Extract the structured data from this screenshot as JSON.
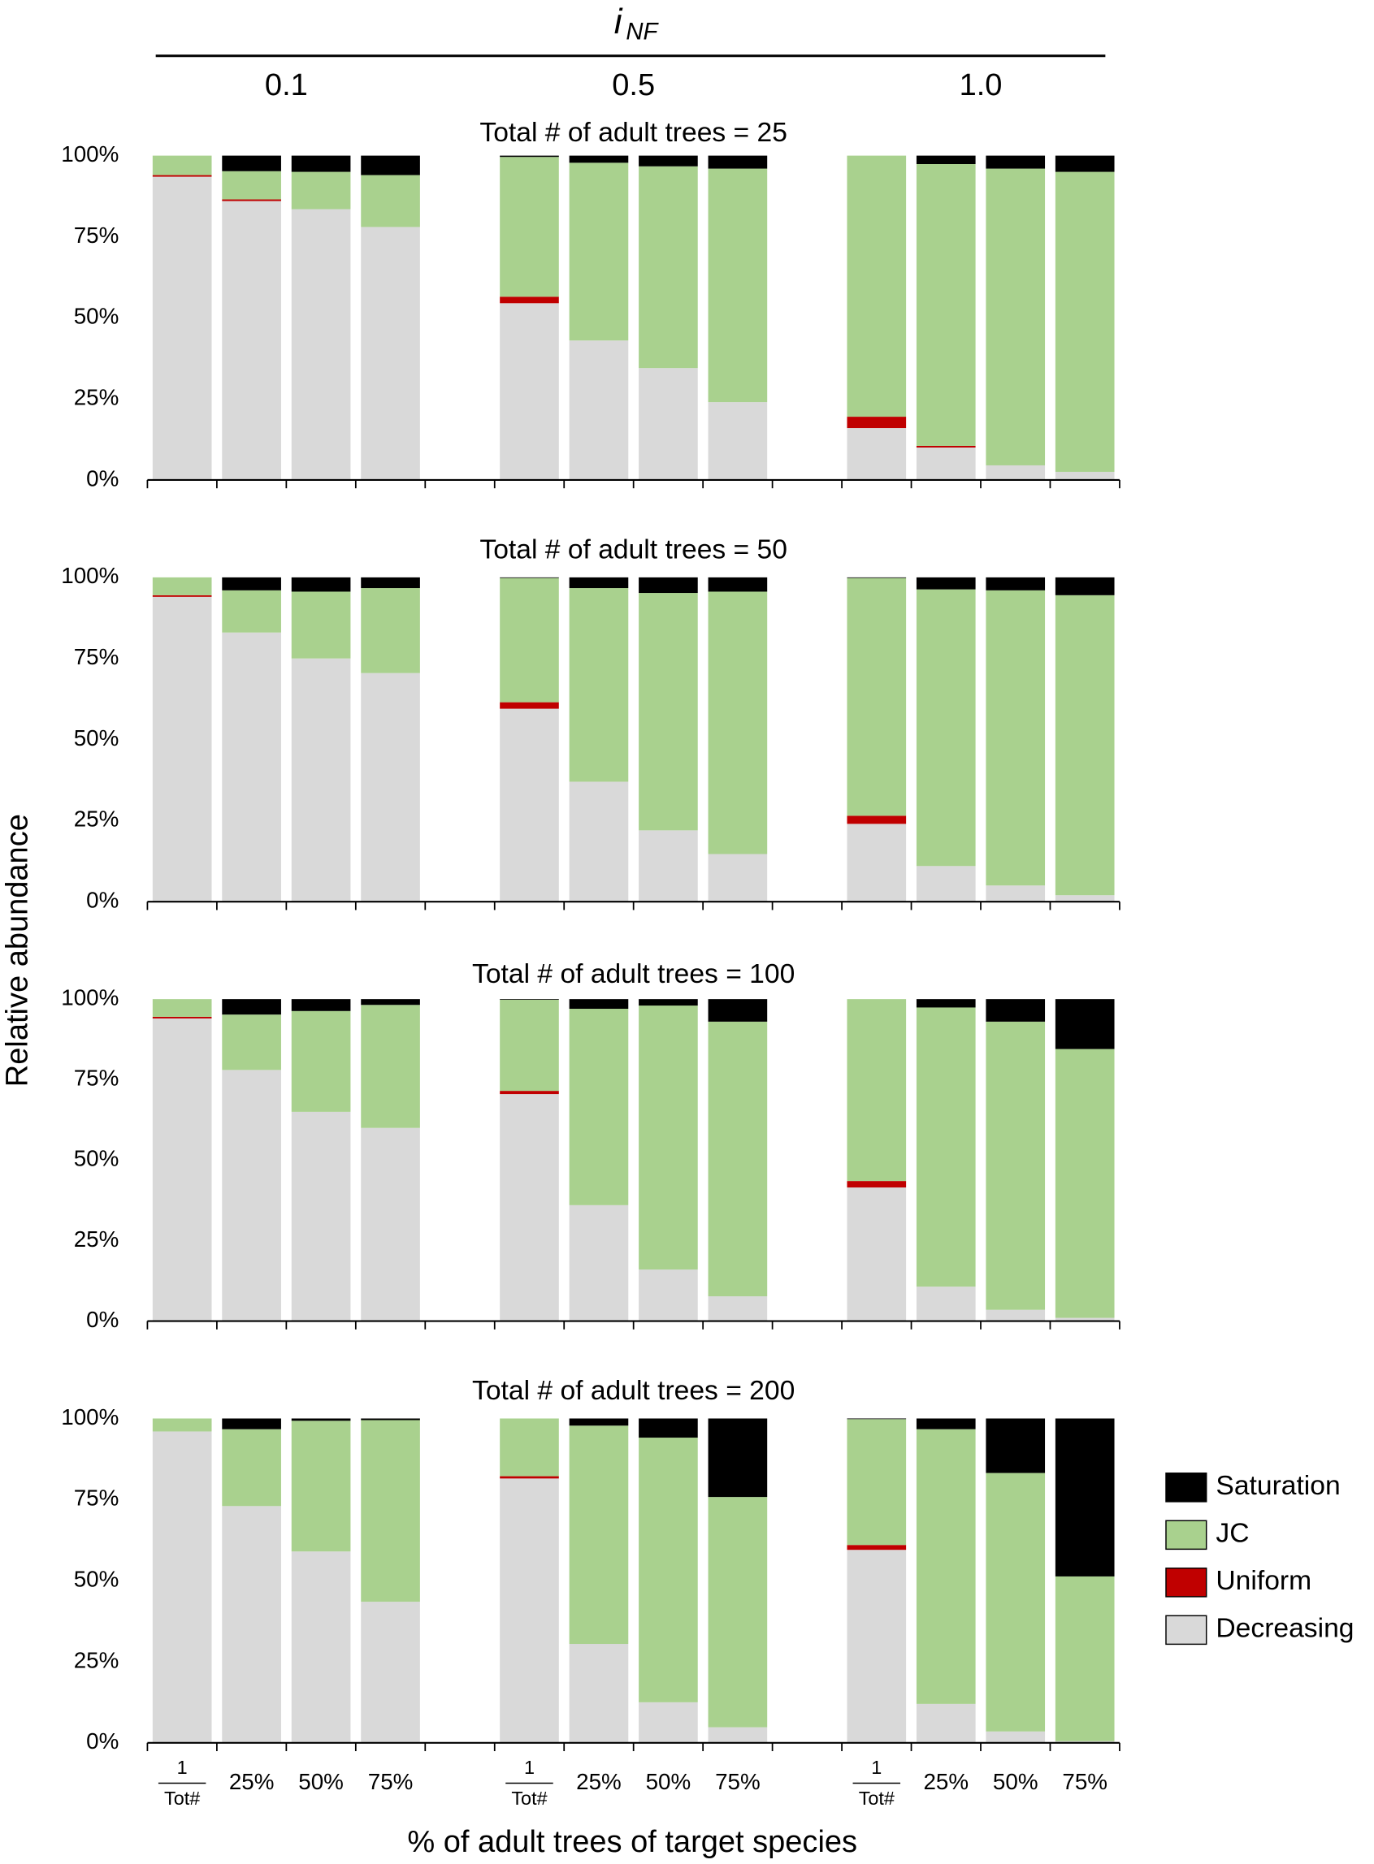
{
  "header": {
    "text": "i",
    "subscript": "NF"
  },
  "groups": [
    "0.1",
    "0.5",
    "1.0"
  ],
  "ylabel": "Relative abundance",
  "xlabel": "% of adult trees of target species",
  "chart_data": [
    {
      "type": "bar",
      "stacked": true,
      "title": "Total # of adult trees = 25",
      "ylim": [
        0,
        100
      ],
      "yticks": [
        {
          "value": 0,
          "label": "0%"
        },
        {
          "value": 25,
          "label": "25%"
        },
        {
          "value": 50,
          "label": "50%"
        },
        {
          "value": 75,
          "label": "75%"
        },
        {
          "value": 100,
          "label": "100%"
        }
      ],
      "series": [
        {
          "color": "#d9d9d9",
          "values": [
            93.5,
            86,
            83.5,
            78,
            null,
            54.5,
            43,
            34.5,
            24,
            null,
            16,
            10,
            4.5,
            2.5
          ]
        },
        {
          "color": "#c00000",
          "values": [
            0.5,
            0.5,
            0,
            0,
            null,
            2,
            0,
            0,
            0,
            null,
            3.5,
            0.5,
            0,
            0
          ]
        },
        {
          "color": "#a9d18e",
          "values": [
            6,
            8.7,
            11.5,
            16,
            null,
            43.1,
            54.8,
            62.2,
            72,
            null,
            80.5,
            86.9,
            91.5,
            92.5
          ]
        },
        {
          "color": "#000000",
          "values": [
            0,
            4.8,
            5,
            6,
            null,
            0.4,
            2.2,
            3.3,
            4,
            null,
            0,
            2.6,
            4,
            5
          ]
        }
      ]
    },
    {
      "type": "bar",
      "stacked": true,
      "title": "Total # of adult trees = 50",
      "ylim": [
        0,
        100
      ],
      "yticks": [
        {
          "value": 0,
          "label": "0%"
        },
        {
          "value": 25,
          "label": "25%"
        },
        {
          "value": 50,
          "label": "50%"
        },
        {
          "value": 75,
          "label": "75%"
        },
        {
          "value": 100,
          "label": "100%"
        }
      ],
      "series": [
        {
          "color": "#d9d9d9",
          "values": [
            94,
            83,
            75,
            70.5,
            null,
            59.5,
            37,
            22,
            14.7,
            null,
            24,
            11,
            5,
            2
          ]
        },
        {
          "color": "#c00000",
          "values": [
            0.5,
            0,
            0,
            0,
            null,
            2,
            0,
            0,
            0,
            null,
            2.5,
            0,
            0,
            0
          ]
        },
        {
          "color": "#a9d18e",
          "values": [
            5.5,
            13,
            20.6,
            26.2,
            null,
            38.3,
            59.7,
            73.2,
            80.9,
            null,
            73.3,
            85.3,
            91,
            92.5
          ]
        },
        {
          "color": "#000000",
          "values": [
            0,
            4,
            4.4,
            3.3,
            null,
            0.2,
            3.3,
            4.8,
            4.4,
            null,
            0.2,
            3.7,
            4,
            5.5
          ]
        }
      ]
    },
    {
      "type": "bar",
      "stacked": true,
      "title": "Total # of adult trees = 100",
      "ylim": [
        0,
        100
      ],
      "yticks": [
        {
          "value": 0,
          "label": "0%"
        },
        {
          "value": 25,
          "label": "25%"
        },
        {
          "value": 50,
          "label": "50%"
        },
        {
          "value": 75,
          "label": "75%"
        },
        {
          "value": 100,
          "label": "100%"
        }
      ],
      "series": [
        {
          "color": "#d9d9d9",
          "values": [
            94,
            78,
            65,
            60,
            null,
            70.5,
            36,
            16,
            7.7,
            null,
            41.5,
            10.7,
            3.5,
            1
          ]
        },
        {
          "color": "#c00000",
          "values": [
            0.5,
            0,
            0,
            0,
            null,
            1,
            0,
            0,
            0,
            null,
            2,
            0,
            0,
            0
          ]
        },
        {
          "color": "#a9d18e",
          "values": [
            5.5,
            17.2,
            31.3,
            38.2,
            null,
            28.3,
            61,
            82,
            85.3,
            null,
            56.5,
            86.7,
            89.5,
            83.5
          ]
        },
        {
          "color": "#000000",
          "values": [
            0,
            4.8,
            3.7,
            1.8,
            null,
            0.2,
            3,
            2,
            7,
            null,
            0,
            2.6,
            7,
            15.5
          ]
        }
      ]
    },
    {
      "type": "bar",
      "stacked": true,
      "title": "Total # of adult trees = 200",
      "categories": [
        {
          "numerator": "1",
          "denominator": "Tot#"
        },
        "25%",
        "50%",
        "75%",
        null,
        {
          "numerator": "1",
          "denominator": "Tot#"
        },
        "25%",
        "50%",
        "75%",
        null,
        {
          "numerator": "1",
          "denominator": "Tot#"
        },
        "25%",
        "50%",
        "75%"
      ],
      "ylim": [
        0,
        100
      ],
      "yticks": [
        {
          "value": 0,
          "label": "0%"
        },
        {
          "value": 25,
          "label": "25%"
        },
        {
          "value": 50,
          "label": "50%"
        },
        {
          "value": 75,
          "label": "75%"
        },
        {
          "value": 100,
          "label": "100%"
        }
      ],
      "legend": "right",
      "series": [
        {
          "name": "Decreasing",
          "color": "#d9d9d9",
          "values": [
            96,
            73,
            59,
            43.5,
            null,
            81.5,
            30.5,
            12.5,
            4.8,
            null,
            59.5,
            12,
            3.5,
            0.5
          ]
        },
        {
          "name": "Uniform",
          "color": "#c00000",
          "values": [
            0,
            0,
            0,
            0,
            null,
            0.7,
            0,
            0,
            0,
            null,
            1.5,
            0,
            0,
            0
          ]
        },
        {
          "name": "JC",
          "color": "#a9d18e",
          "values": [
            4,
            23.7,
            40.3,
            56,
            null,
            17.8,
            67.3,
            81.6,
            71,
            null,
            38.8,
            84.7,
            79.7,
            50.8
          ]
        },
        {
          "name": "Saturation",
          "color": "#000000",
          "values": [
            0,
            3.3,
            0.7,
            0.5,
            null,
            0,
            2.2,
            5.9,
            24.2,
            null,
            0.2,
            3.3,
            16.8,
            48.7
          ]
        }
      ]
    }
  ]
}
